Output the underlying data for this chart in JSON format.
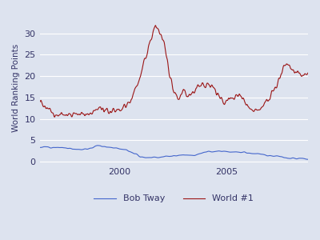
{
  "title": "",
  "ylabel": "World Ranking Points",
  "xlabel": "",
  "background_color": "#dde3ef",
  "figure_background": "#dde3ef",
  "grid_color": "#ffffff",
  "xlim": [
    1996.3,
    2008.8
  ],
  "ylim": [
    -0.5,
    35
  ],
  "yticks": [
    0,
    5,
    10,
    15,
    20,
    25,
    30
  ],
  "xticks": [
    2000,
    2005
  ],
  "bob_tway_color": "#4466cc",
  "world1_color": "#9b1515",
  "legend_labels": [
    "Bob Tway",
    "World #1"
  ],
  "figsize": [
    4.0,
    3.0
  ],
  "dpi": 100
}
